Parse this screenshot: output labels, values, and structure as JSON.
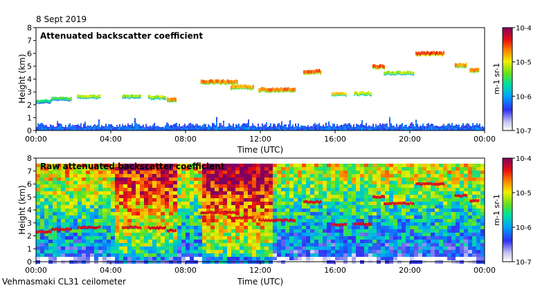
{
  "date": "8 Sept 2019",
  "instrument": "Vehmasmaki CL31 ceilometer",
  "chart_data": [
    {
      "type": "heatmap",
      "title": "Attenuated backscatter coefficient",
      "xlabel": "Time (UTC)",
      "ylabel": "Height (km)",
      "x_ticks": [
        "00:00",
        "04:00",
        "08:00",
        "12:00",
        "16:00",
        "20:00",
        "00:00"
      ],
      "x_range_hours": [
        0,
        24
      ],
      "y_ticks": [
        "0",
        "1",
        "2",
        "3",
        "4",
        "5",
        "6",
        "7",
        "8"
      ],
      "ylim": [
        0,
        8
      ],
      "colorbar": {
        "label": "m-1 sr-1",
        "ticks": [
          "10-7",
          "10-6",
          "10-5",
          "10-4"
        ],
        "range_log10": [
          -7,
          -4
        ]
      },
      "layers": [
        {
          "t0": 0.0,
          "t1": 0.8,
          "h": 2.3,
          "v": -5.4
        },
        {
          "t0": 0.8,
          "t1": 1.9,
          "h": 2.5,
          "v": -5.3
        },
        {
          "t0": 2.2,
          "t1": 3.4,
          "h": 2.65,
          "v": -5.0
        },
        {
          "t0": 4.6,
          "t1": 5.6,
          "h": 2.65,
          "v": -5.1
        },
        {
          "t0": 6.0,
          "t1": 6.9,
          "h": 2.6,
          "v": -5.0
        },
        {
          "t0": 7.0,
          "t1": 7.5,
          "h": 2.4,
          "v": -4.6
        },
        {
          "t0": 8.8,
          "t1": 10.8,
          "h": 3.8,
          "v": -4.5
        },
        {
          "t0": 10.4,
          "t1": 11.6,
          "h": 3.4,
          "v": -4.6
        },
        {
          "t0": 11.9,
          "t1": 13.9,
          "h": 3.2,
          "v": -4.5
        },
        {
          "t0": 14.3,
          "t1": 15.2,
          "h": 4.6,
          "v": -4.4
        },
        {
          "t0": 15.8,
          "t1": 16.6,
          "h": 2.85,
          "v": -4.8
        },
        {
          "t0": 17.0,
          "t1": 17.9,
          "h": 2.9,
          "v": -4.9
        },
        {
          "t0": 18.0,
          "t1": 18.6,
          "h": 5.0,
          "v": -4.4
        },
        {
          "t0": 18.6,
          "t1": 20.2,
          "h": 4.5,
          "v": -5.0
        },
        {
          "t0": 20.3,
          "t1": 21.8,
          "h": 6.0,
          "v": -4.3
        },
        {
          "t0": 22.4,
          "t1": 23.0,
          "h": 5.1,
          "v": -4.6
        },
        {
          "t0": 23.2,
          "t1": 23.7,
          "h": 4.7,
          "v": -4.5
        }
      ]
    },
    {
      "type": "heatmap",
      "title": "Raw attenuated backscatter coefficient",
      "xlabel": "Time (UTC)",
      "ylabel": "Height (km)",
      "x_ticks": [
        "00:00",
        "04:00",
        "08:00",
        "12:00",
        "16:00",
        "20:00",
        "00:00"
      ],
      "x_range_hours": [
        0,
        24
      ],
      "y_ticks": [
        "0",
        "1",
        "2",
        "3",
        "4",
        "5",
        "6",
        "7",
        "8"
      ],
      "ylim": [
        0,
        8
      ],
      "colorbar": {
        "label": "m-1 sr-1",
        "ticks": [
          "10-7",
          "10-6",
          "10-5",
          "10-4"
        ],
        "range_log10": [
          -7,
          -4
        ]
      }
    }
  ]
}
